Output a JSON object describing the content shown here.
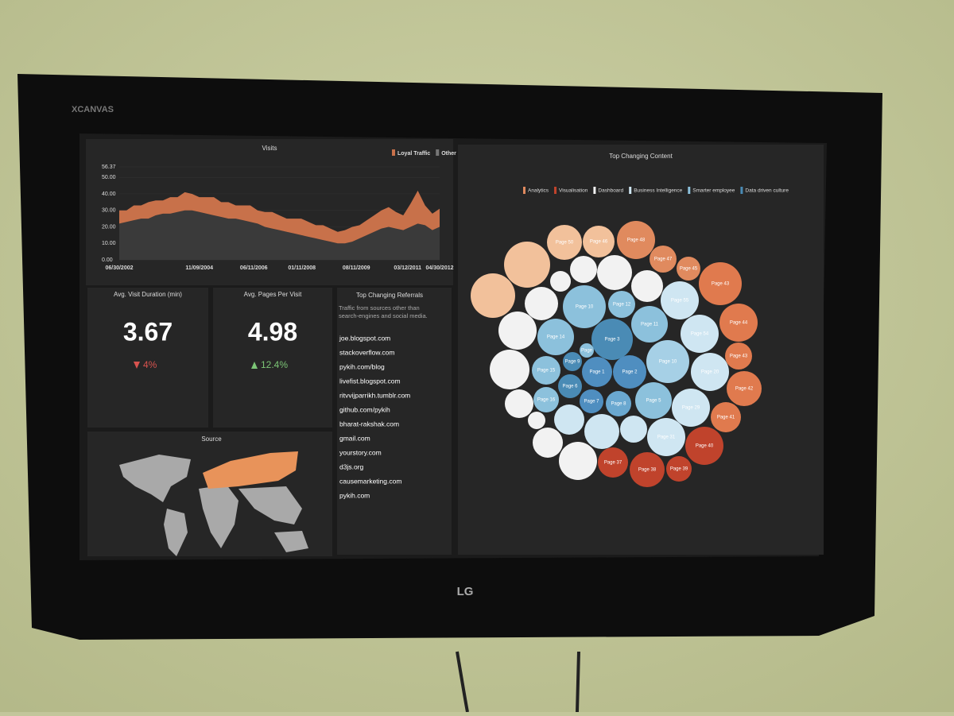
{
  "tv": {
    "maker_badge": "XCANVAS",
    "brand": "LG"
  },
  "visits": {
    "type": "area",
    "title": "Visits",
    "x_labels": [
      "06/30/2002",
      "11/09/2004",
      "06/11/2006",
      "01/11/2008",
      "08/11/2009",
      "03/12/2011",
      "04/30/2012"
    ],
    "ylim": [
      0,
      56.37
    ],
    "yticks": [
      56.37,
      {
        "value": 50,
        "label": "50.00"
      },
      {
        "value": 40,
        "label": "40.00"
      },
      {
        "value": 30,
        "label": "30.00"
      },
      {
        "value": 20,
        "label": "20.00"
      },
      {
        "value": 10,
        "label": "10.00"
      },
      {
        "value": 0,
        "label": "0.00"
      }
    ],
    "series": [
      {
        "name": "Loyal Traffic",
        "color": "#c8714a",
        "values": [
          8,
          7,
          9,
          8,
          10,
          9,
          8,
          10,
          9,
          11,
          10,
          9,
          10,
          11,
          9,
          10,
          8,
          9,
          10,
          8,
          9,
          10,
          9,
          8,
          9,
          10,
          9,
          8,
          9,
          8,
          7,
          8,
          9,
          8,
          9,
          10,
          11,
          12,
          10,
          9,
          14,
          20,
          12,
          10,
          11
        ]
      },
      {
        "name": "Other",
        "color": "#3a3a3a",
        "values": [
          22,
          23,
          24,
          25,
          25,
          27,
          28,
          28,
          29,
          30,
          30,
          29,
          28,
          27,
          26,
          25,
          25,
          24,
          23,
          22,
          20,
          19,
          18,
          17,
          16,
          15,
          14,
          13,
          12,
          11,
          10,
          10,
          11,
          13,
          15,
          17,
          19,
          20,
          19,
          18,
          20,
          22,
          21,
          18,
          20
        ]
      }
    ]
  },
  "metrics": [
    {
      "title": "Avg. Visit Duration (min)",
      "value": "3.67",
      "change": "4%",
      "direction": "down",
      "color": "#d9534f"
    },
    {
      "title": "Avg. Pages Per Visit",
      "value": "4.98",
      "change": "12.4%",
      "direction": "up",
      "color": "#7cc576"
    }
  ],
  "referrals": {
    "title": "Top Changing Referrals",
    "subtitle": "Traffic from sources other than search-engines and social media.",
    "items": [
      "joe.blogspot.com",
      "stackoverflow.com",
      "pykih.com/blog",
      "livefist.blogspot.com",
      "ritvvijparrikh.tumblr.com",
      "github.com/pykih",
      "bharat-rakshak.com",
      "gmail.com",
      "yourstory.com",
      "d3js.org",
      "causemarketing.com",
      "pykih.com"
    ]
  },
  "source": {
    "title": "Source"
  },
  "content": {
    "title": "Top Changing Content",
    "legend": [
      {
        "name": "Analytics",
        "color": "#e08a5e"
      },
      {
        "name": "Visualisation",
        "color": "#c0432c"
      },
      {
        "name": "Dashboard",
        "color": "#f2f2f2"
      },
      {
        "name": "Business Intelligence",
        "color": "#cfe6f2"
      },
      {
        "name": "Smarter employee",
        "color": "#8cc1dc"
      },
      {
        "name": "Data driven culture",
        "color": "#4a8bb5"
      }
    ],
    "bubbles": [
      {
        "color": "#f2c19b",
        "size": 29
      },
      {
        "color": "#f2c19b",
        "size": 28
      },
      {
        "label": "Page 50",
        "color": "#f2c19b",
        "size": 22
      },
      {
        "label": "Page 46",
        "color": "#f2c19b",
        "size": 20
      },
      {
        "label": "Page 48",
        "color": "#e08a5e",
        "size": 24
      },
      {
        "label": "Page 47",
        "color": "#e08a5e",
        "size": 17
      },
      {
        "label": "Page 45",
        "color": "#e08a5e",
        "size": 15
      },
      {
        "label": "Page 43",
        "color": "#e07a4e",
        "size": 27
      },
      {
        "label": "Page 44",
        "color": "#e07a4e",
        "size": 24
      },
      {
        "label": "Page 43",
        "color": "#e07a4e",
        "size": 17
      },
      {
        "label": "Page 42",
        "color": "#e07a4e",
        "size": 22
      },
      {
        "label": "Page 41",
        "color": "#e07a4e",
        "size": 19
      },
      {
        "label": "Page 40",
        "color": "#c0432c",
        "size": 24
      },
      {
        "label": "Page 39",
        "color": "#c0432c",
        "size": 16
      },
      {
        "label": "Page 38",
        "color": "#c0432c",
        "size": 22
      },
      {
        "label": "Page 37",
        "color": "#c0432c",
        "size": 19
      },
      {
        "color": "#f2f2f2",
        "size": 17
      },
      {
        "color": "#f2f2f2",
        "size": 22
      },
      {
        "color": "#f2f2f2",
        "size": 20
      },
      {
        "color": "#f2f2f2",
        "size": 13
      },
      {
        "color": "#f2f2f2",
        "size": 21
      },
      {
        "color": "#f2f2f2",
        "size": 24
      },
      {
        "color": "#f2f2f2",
        "size": 25
      },
      {
        "color": "#f2f2f2",
        "size": 18
      },
      {
        "color": "#f2f2f2",
        "size": 11
      },
      {
        "color": "#f2f2f2",
        "size": 19
      },
      {
        "color": "#f2f2f2",
        "size": 24
      },
      {
        "label": "Page 10",
        "color": "#8cc1dc",
        "size": 27
      },
      {
        "label": "Page 12",
        "color": "#8cc1dc",
        "size": 17
      },
      {
        "label": "Page 55",
        "color": "#cfe6f2",
        "size": 24
      },
      {
        "label": "Page 11",
        "color": "#8cc1dc",
        "size": 23
      },
      {
        "label": "Page 54",
        "color": "#cfe6f2",
        "size": 24
      },
      {
        "label": "Page 14",
        "color": "#8cc1dc",
        "size": 23
      },
      {
        "label": "Page 3",
        "color": "#4a8bb5",
        "size": 26
      },
      {
        "label": "Page 10",
        "color": "#a6d0e6",
        "size": 27
      },
      {
        "label": "Page 20",
        "color": "#cfe6f2",
        "size": 24
      },
      {
        "label": "Page 15",
        "color": "#8cc1dc",
        "size": 18
      },
      {
        "label": "Page 9",
        "color": "#4a8bb5",
        "size": 12
      },
      {
        "label": "Page",
        "color": "#8cc1dc",
        "size": 9
      },
      {
        "label": "Page 1",
        "color": "#4f8ec0",
        "size": 19
      },
      {
        "label": "Page 2",
        "color": "#4f8ec0",
        "size": 21
      },
      {
        "label": "Page 6",
        "color": "#4a8bb5",
        "size": 15
      },
      {
        "label": "Page 16",
        "color": "#8cc1dc",
        "size": 16
      },
      {
        "label": "Page 7",
        "color": "#4f8ec0",
        "size": 15
      },
      {
        "label": "Page 8",
        "color": "#6aa8d0",
        "size": 16
      },
      {
        "label": "Page 5",
        "color": "#8cc1dc",
        "size": 23
      },
      {
        "label": "Page 29",
        "color": "#cfe6f2",
        "size": 24
      },
      {
        "color": "#cfe6f2",
        "size": 19
      },
      {
        "color": "#cfe6f2",
        "size": 22
      },
      {
        "color": "#cfe6f2",
        "size": 17
      },
      {
        "label": "Page 31",
        "color": "#cfe6f2",
        "size": 24
      }
    ]
  }
}
